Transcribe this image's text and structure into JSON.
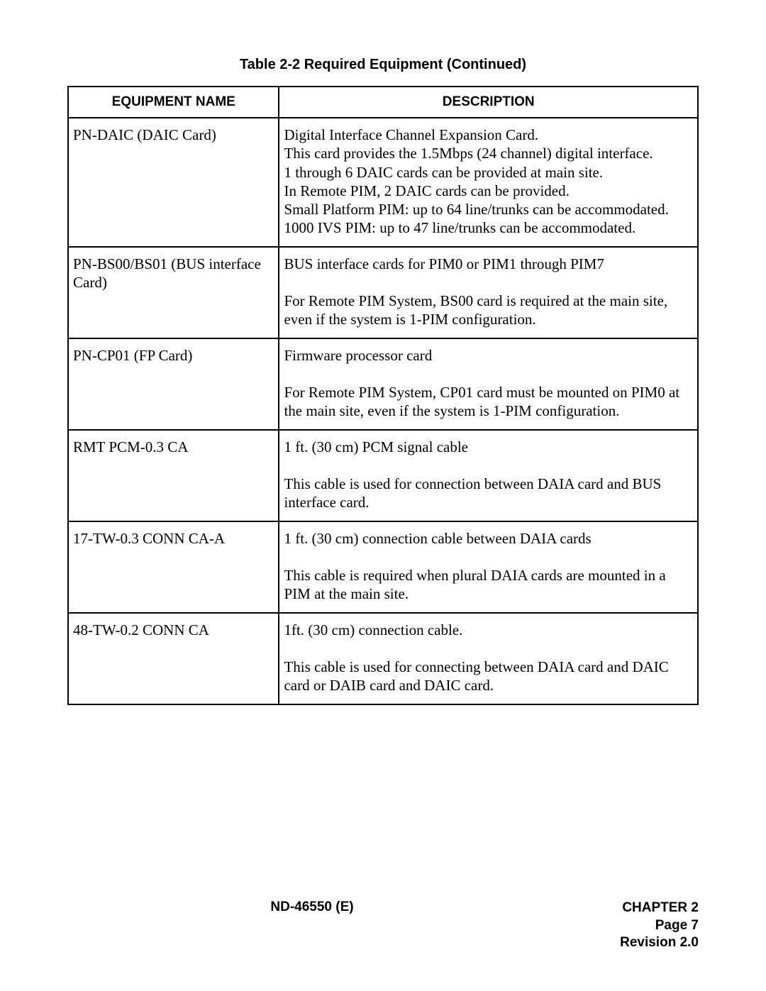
{
  "title": "Table 2-2  Required Equipment  (Continued)",
  "headers": {
    "col1": "EQUIPMENT NAME",
    "col2": "DESCRIPTION"
  },
  "rows": [
    {
      "name": "PN-DAIC (DAIC Card)",
      "desc": "Digital Interface Channel Expansion Card.\nThis card provides the 1.5Mbps (24 channel) digital interface.\n1 through 6 DAIC cards can be provided at main site.\nIn Remote PIM, 2 DAIC cards can be provided.\nSmall Platform PIM: up to 64 line/trunks can be accommodated.\n1000 IVS PIM: up to 47 line/trunks can be accommodated."
    },
    {
      "name": "PN-BS00/BS01 (BUS interface Card)",
      "desc": "BUS interface cards for PIM0 or PIM1 through PIM7\n\nFor Remote PIM System, BS00 card is required at the main site, even if the system is 1-PIM configuration."
    },
    {
      "name": "PN-CP01 (FP Card)",
      "desc": "Firmware processor card\n\nFor Remote PIM System, CP01 card must be mounted on PIM0 at the main site, even if the system is 1-PIM configuration."
    },
    {
      "name": "RMT PCM-0.3 CA",
      "desc": "1 ft. (30 cm) PCM signal cable\n\nThis cable is used for connection between DAIA card and BUS interface card."
    },
    {
      "name": "17-TW-0.3 CONN CA-A",
      "desc": "1 ft. (30 cm) connection cable between DAIA cards\n\nThis cable is required when plural DAIA cards are mounted in a PIM at the main site."
    },
    {
      "name": "48-TW-0.2 CONN CA",
      "desc": "1ft. (30 cm) connection cable.\n\nThis cable is used for connecting between DAIA card and DAIC card or DAIB card and DAIC card."
    }
  ],
  "footer": {
    "left": "ND-46550 (E)",
    "chapter": "CHAPTER 2",
    "page": "Page 7",
    "revision": "Revision 2.0"
  },
  "layout": {
    "col1_width_pct": 33.5,
    "col2_width_pct": 66.5,
    "border_color": "#000000",
    "background_color": "#ffffff",
    "title_fontsize": 20,
    "header_fontsize": 19,
    "cell_fontsize": 21,
    "footer_fontsize": 19
  }
}
